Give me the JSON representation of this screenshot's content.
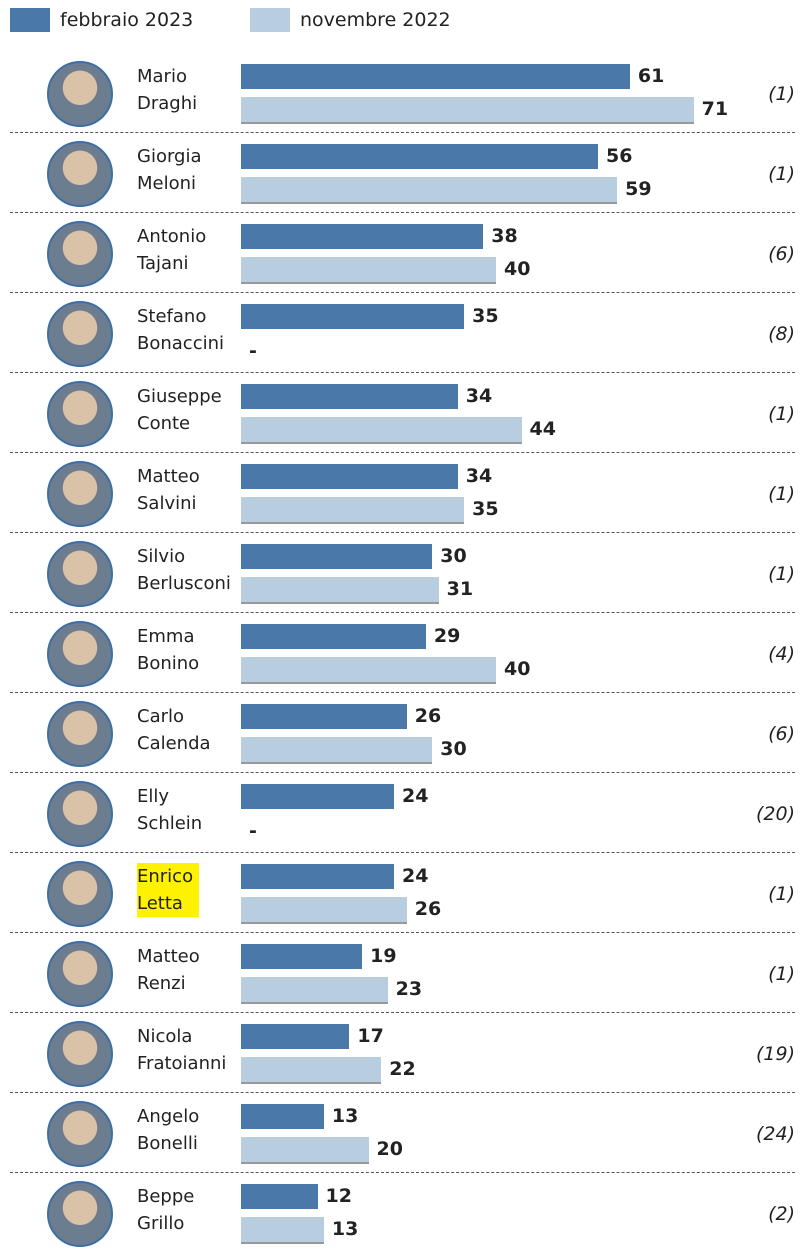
{
  "chart_data": {
    "type": "bar",
    "orientation": "horizontal",
    "categories": [
      "Mario Draghi",
      "Giorgia Meloni",
      "Antonio Tajani",
      "Stefano Bonaccini",
      "Giuseppe Conte",
      "Matteo Salvini",
      "Silvio Berlusconi",
      "Emma Bonino",
      "Carlo Calenda",
      "Elly Schlein",
      "Enrico Letta",
      "Matteo Renzi",
      "Nicola Fratoianni",
      "Angelo Bonelli",
      "Beppe Grillo"
    ],
    "series": [
      {
        "name": "febbraio 2023",
        "color": "#4a78a8",
        "values": [
          61,
          56,
          38,
          35,
          34,
          34,
          30,
          29,
          26,
          24,
          24,
          19,
          17,
          13,
          12
        ]
      },
      {
        "name": "novembre 2022",
        "color": "#b8cde0",
        "values": [
          71,
          59,
          40,
          null,
          44,
          35,
          31,
          40,
          30,
          null,
          26,
          23,
          22,
          20,
          13
        ],
        "value_labels": [
          "71",
          "59",
          "40",
          "-",
          "44",
          "35",
          "31",
          "40",
          "30",
          "-",
          "26",
          "23",
          "22",
          "20",
          "13"
        ]
      }
    ],
    "side_labels": [
      "(1)",
      "(1)",
      "(6)",
      "(8)",
      "(1)",
      "(1)",
      "(1)",
      "(4)",
      "(6)",
      "(20)",
      "(1)",
      "(1)",
      "(19)",
      "(24)",
      "(2)"
    ],
    "highlight": {
      "category": 10,
      "color": "#fff200"
    },
    "xlim": [
      0,
      80
    ]
  }
}
